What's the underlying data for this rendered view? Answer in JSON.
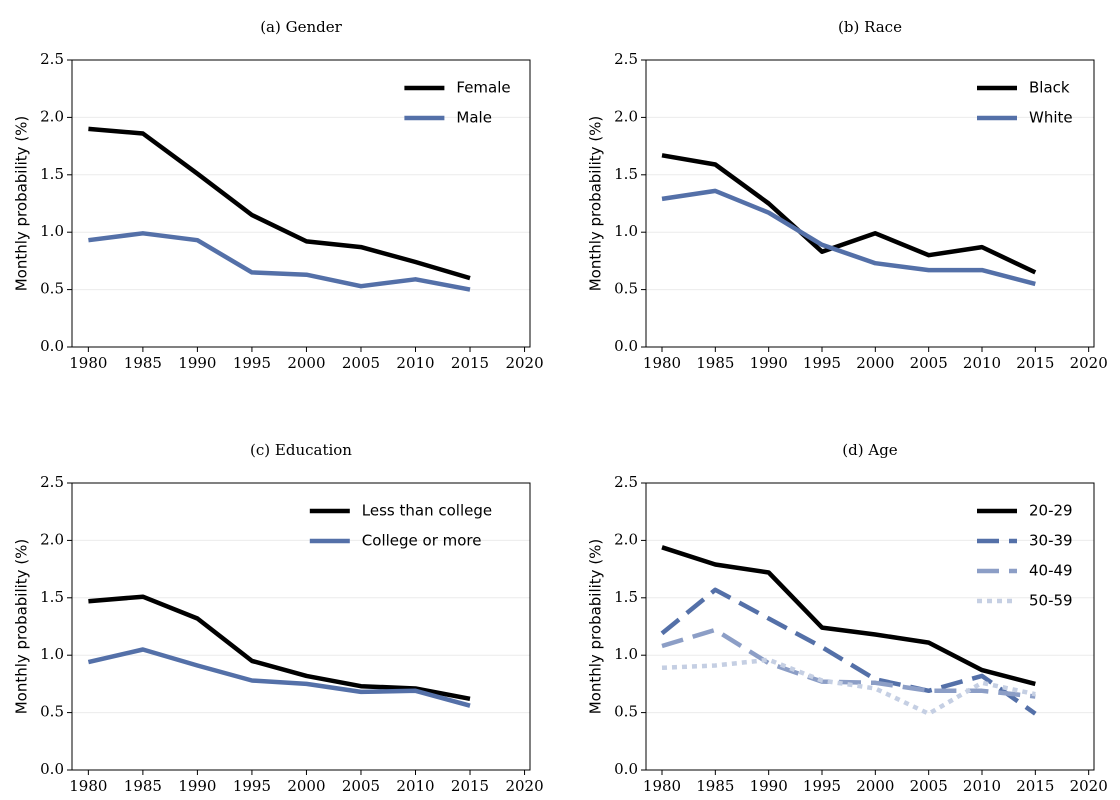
{
  "chart_data": [
    {
      "type": "line",
      "title": "(a) Gender",
      "ylabel": "Monthly probability (%)",
      "x": [
        1980,
        1985,
        1990,
        1995,
        2000,
        2005,
        2010,
        2015
      ],
      "series": [
        {
          "name": "Female",
          "color": "#000000",
          "dash": "solid",
          "values": [
            1.9,
            1.86,
            1.51,
            1.15,
            0.92,
            0.87,
            0.74,
            0.6
          ]
        },
        {
          "name": "Male",
          "color": "#5470a8",
          "dash": "solid",
          "values": [
            0.93,
            0.99,
            0.93,
            0.65,
            0.63,
            0.53,
            0.59,
            0.5
          ]
        }
      ],
      "xlim": [
        1978.5,
        2020.5
      ],
      "xticks": [
        1980,
        1985,
        1990,
        1995,
        2000,
        2005,
        2010,
        2015,
        2020
      ],
      "ylim": [
        0,
        2.5
      ],
      "yticks": [
        {
          "value": 0,
          "label": "0.0"
        },
        0.5,
        {
          "value": 1,
          "label": "1.0"
        },
        1.5,
        {
          "value": 2,
          "label": "2.0"
        },
        2.5
      ],
      "grid": true,
      "legend": "upper-right"
    },
    {
      "type": "line",
      "title": "(b) Race",
      "ylabel": "Monthly probability (%)",
      "x": [
        1980,
        1985,
        1990,
        1995,
        2000,
        2005,
        2010,
        2015
      ],
      "series": [
        {
          "name": "Black",
          "color": "#000000",
          "dash": "solid",
          "values": [
            1.67,
            1.59,
            1.25,
            0.83,
            0.99,
            0.8,
            0.87,
            0.65
          ]
        },
        {
          "name": "White",
          "color": "#5470a8",
          "dash": "solid",
          "values": [
            1.29,
            1.36,
            1.17,
            0.89,
            0.73,
            0.67,
            0.67,
            0.55
          ]
        }
      ],
      "xlim": [
        1978.5,
        2020.5
      ],
      "xticks": [
        1980,
        1985,
        1990,
        1995,
        2000,
        2005,
        2010,
        2015,
        2020
      ],
      "ylim": [
        0,
        2.5
      ],
      "yticks": [
        {
          "value": 0,
          "label": "0.0"
        },
        0.5,
        {
          "value": 1,
          "label": "1.0"
        },
        1.5,
        {
          "value": 2,
          "label": "2.0"
        },
        2.5
      ],
      "grid": true,
      "legend": "upper-right"
    },
    {
      "type": "line",
      "title": "(c) Education",
      "ylabel": "Monthly probability (%)",
      "x": [
        1980,
        1985,
        1990,
        1995,
        2000,
        2005,
        2010,
        2015
      ],
      "series": [
        {
          "name": "Less than college",
          "color": "#000000",
          "dash": "solid",
          "values": [
            1.47,
            1.51,
            1.32,
            0.95,
            0.82,
            0.73,
            0.71,
            0.62
          ]
        },
        {
          "name": "College or more",
          "color": "#5470a8",
          "dash": "solid",
          "values": [
            0.94,
            1.05,
            0.91,
            0.78,
            0.75,
            0.68,
            0.69,
            0.56
          ]
        }
      ],
      "xlim": [
        1978.5,
        2020.5
      ],
      "xticks": [
        1980,
        1985,
        1990,
        1995,
        2000,
        2005,
        2010,
        2015,
        2020
      ],
      "ylim": [
        0,
        2.5
      ],
      "yticks": [
        {
          "value": 0,
          "label": "0.0"
        },
        0.5,
        {
          "value": 1,
          "label": "1.0"
        },
        1.5,
        {
          "value": 2,
          "label": "2.0"
        },
        2.5
      ],
      "grid": true,
      "legend": "upper-right"
    },
    {
      "type": "line",
      "title": "(d) Age",
      "ylabel": "Monthly probability (%)",
      "x": [
        1980,
        1985,
        1990,
        1995,
        2000,
        2005,
        2010,
        2015
      ],
      "series": [
        {
          "name": "20-29",
          "color": "#000000",
          "dash": "solid",
          "values": [
            1.94,
            1.79,
            1.72,
            1.24,
            1.18,
            1.11,
            0.87,
            0.75
          ]
        },
        {
          "name": "30-39",
          "color": "#5470a8",
          "dash": "dashed",
          "values": [
            1.19,
            1.57,
            1.32,
            1.07,
            0.79,
            0.69,
            0.82,
            0.49
          ]
        },
        {
          "name": "40-49",
          "color": "#8c9ec6",
          "dash": "dashed",
          "values": [
            1.08,
            1.22,
            0.93,
            0.77,
            0.76,
            0.69,
            0.69,
            0.64
          ]
        },
        {
          "name": "50-59",
          "color": "#c5cfe3",
          "dash": "dotted",
          "values": [
            0.89,
            0.91,
            0.96,
            0.78,
            0.71,
            0.49,
            0.76,
            0.66
          ]
        }
      ],
      "xlim": [
        1978.5,
        2020.5
      ],
      "xticks": [
        1980,
        1985,
        1990,
        1995,
        2000,
        2005,
        2010,
        2015,
        2020
      ],
      "ylim": [
        0,
        2.5
      ],
      "yticks": [
        {
          "value": 0,
          "label": "0.0"
        },
        0.5,
        {
          "value": 1,
          "label": "1.0"
        },
        1.5,
        {
          "value": 2,
          "label": "2.0"
        },
        2.5
      ],
      "grid": true,
      "legend": "upper-right"
    }
  ]
}
